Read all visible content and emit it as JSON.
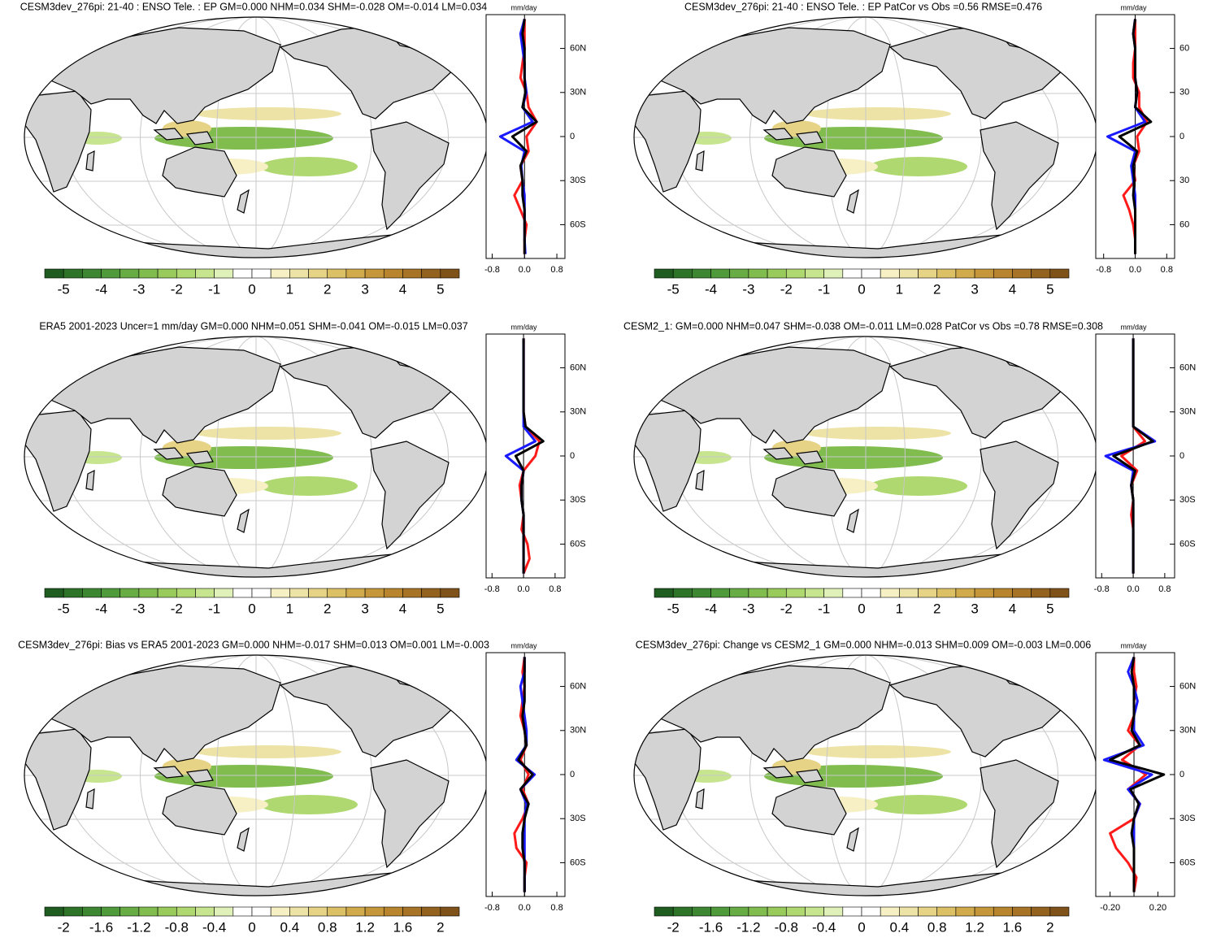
{
  "chart_data": [
    {
      "type": "line",
      "title": "CESM3dev_276pi: 21-40 : ENSO Tele. : EP GM=0.000 NHM=0.034 SHM=-0.028 OM=-0.014 LM=0.034",
      "unit": "mm/day",
      "y": [
        -80,
        -70,
        -60,
        -50,
        -40,
        -30,
        -20,
        -10,
        0,
        10,
        20,
        30,
        40,
        50,
        60,
        70,
        80
      ],
      "xlim": [
        -0.95,
        1.0
      ],
      "xticks": [
        -0.8,
        {
          "value": 0,
          "label": "0.0"
        },
        0.8
      ],
      "ylim": [
        -83,
        83
      ],
      "yticks": [
        {
          "value": 60,
          "label": "60N"
        },
        {
          "value": 30,
          "label": "30N"
        },
        0,
        {
          "value": -30,
          "label": "30S"
        },
        {
          "value": -60,
          "label": "60S"
        }
      ],
      "series": [
        {
          "color": "#ff1a1a",
          "values": [
            0,
            0,
            0.05,
            -0.1,
            -0.25,
            -0.05,
            -0.1,
            0.1,
            0.05,
            0.3,
            0.1,
            0.05,
            -0.1,
            -0.05,
            0,
            0,
            0
          ]
        },
        {
          "color": "#1a1aff",
          "values": [
            0.02,
            0,
            0,
            0,
            0,
            -0.05,
            -0.08,
            0,
            -0.6,
            0.2,
            -0.05,
            0.05,
            0,
            0,
            -0.05,
            -0.1,
            0
          ]
        },
        {
          "color": "#000000",
          "values": [
            0,
            0,
            0,
            0,
            -0.05,
            -0.05,
            -0.1,
            0.05,
            -0.3,
            0.3,
            -0.05,
            0.02,
            0,
            0,
            0,
            -0.05,
            0
          ]
        }
      ],
      "colorbar": {
        "lim": [
          -5.5,
          5.5
        ],
        "ticks": [
          -5,
          -4,
          -3,
          -2,
          -1,
          0,
          1,
          2,
          3,
          4,
          5
        ]
      }
    },
    {
      "type": "line",
      "title": "CESM3dev_276pi: 21-40 : ENSO Tele. : EP PatCor vs Obs =0.56 RMSE=0.476",
      "unit": "mm/day",
      "y": [
        -80,
        -70,
        -60,
        -50,
        -40,
        -30,
        -20,
        -10,
        0,
        10,
        20,
        30,
        40,
        50,
        60,
        70,
        80
      ],
      "xlim": [
        -1.0,
        1.0
      ],
      "xticks": [
        -0.8,
        {
          "value": 0,
          "label": "0.0"
        },
        0.8
      ],
      "ylim": [
        -83,
        83
      ],
      "yticks": [
        {
          "value": 60,
          "label": "60"
        },
        {
          "value": 30,
          "label": "30"
        },
        0,
        {
          "value": -30,
          "label": "30"
        },
        {
          "value": -60,
          "label": "60"
        }
      ],
      "series": [
        {
          "color": "#ff1a1a",
          "values": [
            0,
            0,
            -0.05,
            -0.15,
            -0.3,
            0,
            -0.05,
            0.1,
            0.05,
            0.3,
            0.1,
            0.1,
            -0.05,
            -0.05,
            0,
            0,
            0
          ]
        },
        {
          "color": "#1a1aff",
          "values": [
            0,
            0,
            0,
            0,
            0,
            -0.05,
            -0.1,
            0,
            -0.7,
            0.25,
            0,
            0.05,
            0,
            0,
            0,
            -0.05,
            0
          ]
        },
        {
          "color": "#000000",
          "values": [
            0,
            0,
            0,
            0,
            -0.05,
            -0.02,
            -0.05,
            0.05,
            -0.4,
            0.4,
            0,
            0.05,
            0,
            0,
            0,
            -0.05,
            0
          ]
        }
      ],
      "colorbar": {
        "lim": [
          -5.5,
          5.5
        ],
        "ticks": [
          -5,
          -4,
          -3,
          -2,
          -1,
          0,
          1,
          2,
          3,
          4,
          5
        ]
      }
    },
    {
      "type": "line",
      "title": "ERA5 2001-2023 Uncer=1 mm/day GM=0.000 NHM=0.051 SHM=-0.041 OM=-0.015 LM=0.037",
      "unit": "mm/day",
      "y": [
        -80,
        -70,
        -60,
        -50,
        -40,
        -30,
        -20,
        -10,
        0,
        10,
        20,
        30,
        40,
        50,
        60,
        70,
        80
      ],
      "xlim": [
        -0.95,
        1.05
      ],
      "xticks": [
        -0.8,
        {
          "value": 0,
          "label": "0.0"
        },
        0.8
      ],
      "ylim": [
        -83,
        83
      ],
      "yticks": [
        {
          "value": 60,
          "label": "60N"
        },
        {
          "value": 30,
          "label": "30N"
        },
        0,
        {
          "value": -30,
          "label": "30S"
        },
        {
          "value": -60,
          "label": "60S"
        }
      ],
      "series": [
        {
          "color": "#ff1a1a",
          "values": [
            0,
            0.15,
            0.1,
            -0.05,
            0,
            -0.05,
            -0.1,
            0,
            0.3,
            0.4,
            0.05,
            0,
            0,
            0,
            0,
            0,
            0
          ]
        },
        {
          "color": "#1a1aff",
          "values": [
            0,
            0,
            0,
            0,
            0,
            -0.05,
            -0.05,
            0,
            -0.45,
            0.3,
            0,
            0,
            0,
            0,
            0,
            0,
            0
          ]
        },
        {
          "color": "#000000",
          "values": [
            0,
            0,
            0,
            0,
            0,
            -0.05,
            -0.05,
            0,
            -0.2,
            0.5,
            0.05,
            0,
            0,
            0,
            0,
            0,
            0
          ]
        }
      ],
      "colorbar": {
        "lim": [
          -5.5,
          5.5
        ],
        "ticks": [
          -5,
          -4,
          -3,
          -2,
          -1,
          0,
          1,
          2,
          3,
          4,
          5
        ]
      }
    },
    {
      "type": "line",
      "title": "CESM2_1: GM=0.000 NHM=0.047 SHM=-0.038 OM=-0.011 LM=0.028 PatCor vs Obs =0.78 RMSE=0.308",
      "unit": "mm/day",
      "y": [
        -80,
        -70,
        -60,
        -50,
        -40,
        -30,
        -20,
        -10,
        0,
        10,
        20,
        30,
        40,
        50,
        60,
        70,
        80
      ],
      "xlim": [
        -0.95,
        1.05
      ],
      "xticks": [
        -0.8,
        {
          "value": 0,
          "label": "0.0"
        },
        0.8
      ],
      "ylim": [
        -83,
        83
      ],
      "yticks": [
        {
          "value": 60,
          "label": "60N"
        },
        {
          "value": 30,
          "label": "30N"
        },
        0,
        {
          "value": -30,
          "label": "30S"
        },
        {
          "value": -60,
          "label": "60S"
        }
      ],
      "series": [
        {
          "color": "#ff1a1a",
          "values": [
            0,
            0,
            0,
            0,
            -0.05,
            0,
            -0.05,
            0.1,
            -0.3,
            0.3,
            0,
            0,
            0,
            0,
            0,
            0,
            0
          ]
        },
        {
          "color": "#1a1aff",
          "values": [
            0,
            0,
            0,
            0,
            0,
            0,
            -0.05,
            0,
            -0.7,
            0.55,
            0,
            0,
            0,
            0,
            0,
            0,
            0
          ]
        },
        {
          "color": "#000000",
          "values": [
            0,
            0,
            0,
            0,
            0,
            0,
            -0.05,
            0.05,
            -0.5,
            0.5,
            0,
            0,
            0,
            0,
            0,
            0,
            0
          ]
        }
      ],
      "colorbar": {
        "lim": [
          -5.5,
          5.5
        ],
        "ticks": [
          -5,
          -4,
          -3,
          -2,
          -1,
          0,
          1,
          2,
          3,
          4,
          5
        ]
      }
    },
    {
      "type": "line",
      "title": "CESM3dev_276pi: Bias vs ERA5 2001-2023 GM=0.000 NHM=-0.017 SHM=0.013 OM=0.001 LM=-0.003",
      "unit": "mm/day",
      "y": [
        -80,
        -70,
        -60,
        -50,
        -40,
        -30,
        -20,
        -10,
        0,
        10,
        20,
        30,
        40,
        50,
        60,
        70,
        80
      ],
      "xlim": [
        -0.95,
        1.0
      ],
      "xticks": [
        -0.8,
        {
          "value": 0,
          "label": "0.0"
        },
        0.8
      ],
      "ylim": [
        -83,
        83
      ],
      "yticks": [
        {
          "value": 60,
          "label": "60N"
        },
        {
          "value": 30,
          "label": "30N"
        },
        0,
        {
          "value": -30,
          "label": "30S"
        },
        {
          "value": -60,
          "label": "60S"
        }
      ],
      "series": [
        {
          "color": "#ff1a1a",
          "values": [
            0,
            0,
            0.05,
            -0.2,
            -0.25,
            -0.05,
            0.1,
            -0.05,
            0.1,
            -0.1,
            0.05,
            0,
            -0.1,
            -0.05,
            0,
            -0.05,
            0
          ]
        },
        {
          "color": "#1a1aff",
          "values": [
            0,
            0,
            0,
            0,
            0,
            0,
            0.05,
            -0.1,
            0.25,
            -0.2,
            0.05,
            0.05,
            0,
            -0.05,
            -0.1,
            0,
            0
          ]
        },
        {
          "color": "#000000",
          "values": [
            0,
            0,
            0,
            -0.05,
            -0.05,
            0,
            0.1,
            -0.1,
            0.2,
            -0.15,
            0.05,
            0,
            -0.05,
            0,
            0,
            0,
            0
          ]
        }
      ],
      "colorbar": {
        "lim": [
          -2.2,
          2.2
        ],
        "ticks": [
          -2,
          -1.6,
          -1.2,
          -0.8,
          -0.4,
          0,
          0.4,
          0.8,
          1.2,
          1.6,
          2
        ]
      }
    },
    {
      "type": "line",
      "title": "CESM3dev_276pi: Change vs CESM2_1 GM=0.000 NHM=-0.013 SHM=0.009 OM=-0.003 LM=0.006",
      "unit": "mm/day",
      "y": [
        -80,
        -70,
        -60,
        -50,
        -40,
        -30,
        -20,
        -10,
        0,
        10,
        20,
        30,
        40,
        50,
        60,
        70,
        80
      ],
      "xlim": [
        -0.32,
        0.34
      ],
      "xticks": [
        {
          "value": -0.2,
          "label": "-0.20"
        },
        {
          "value": 0.2,
          "label": "0.20"
        }
      ],
      "ylim": [
        -83,
        83
      ],
      "yticks": [
        {
          "value": 60,
          "label": "60N"
        },
        {
          "value": 30,
          "label": "30N"
        },
        0,
        {
          "value": -30,
          "label": "30S"
        },
        {
          "value": -60,
          "label": "60S"
        }
      ],
      "series": [
        {
          "color": "#ff1a1a",
          "values": [
            0,
            0.02,
            -0.05,
            -0.15,
            -0.2,
            0,
            0.05,
            -0.05,
            0.1,
            -0.1,
            0.05,
            -0.05,
            0,
            0,
            0.02,
            0,
            0
          ]
        },
        {
          "color": "#1a1aff",
          "values": [
            0,
            0,
            0,
            0,
            0,
            0,
            0.05,
            -0.05,
            0.15,
            -0.25,
            0.08,
            0,
            0,
            0.03,
            0,
            -0.05,
            0
          ]
        },
        {
          "color": "#000000",
          "values": [
            0,
            0,
            0,
            0,
            -0.02,
            0,
            0.04,
            -0.03,
            0.25,
            -0.2,
            0.05,
            -0.02,
            0,
            0,
            0,
            -0.02,
            0
          ]
        }
      ],
      "colorbar": {
        "lim": [
          -2.2,
          2.2
        ],
        "ticks": [
          -2,
          -1.6,
          -1.2,
          -0.8,
          -0.4,
          0,
          0.4,
          0.8,
          1.2,
          1.6,
          2
        ]
      }
    }
  ]
}
